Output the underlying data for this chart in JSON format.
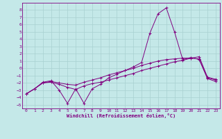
{
  "title": "",
  "xlabel": "Windchill (Refroidissement éolien,°C)",
  "background_color": "#c4e8e8",
  "line_color": "#800080",
  "grid_color": "#a8d0d0",
  "xlim": [
    -0.5,
    23.5
  ],
  "ylim": [
    -5.5,
    9.0
  ],
  "xticks": [
    0,
    1,
    2,
    3,
    4,
    5,
    6,
    7,
    8,
    9,
    10,
    11,
    12,
    13,
    14,
    15,
    16,
    17,
    18,
    19,
    20,
    21,
    22,
    23
  ],
  "yticks": [
    -5,
    -4,
    -3,
    -2,
    -1,
    0,
    1,
    2,
    3,
    4,
    5,
    6,
    7,
    8
  ],
  "line1_x": [
    0,
    1,
    2,
    3,
    4,
    5,
    6,
    7,
    8,
    9,
    10,
    11,
    12,
    13,
    14,
    15,
    16,
    17,
    18,
    19,
    20,
    21,
    22,
    23
  ],
  "line1_y": [
    -3.5,
    -2.8,
    -1.9,
    -1.7,
    -3.0,
    -4.8,
    -2.8,
    -4.8,
    -2.8,
    -2.2,
    -1.3,
    -0.8,
    -0.3,
    0.2,
    0.8,
    4.8,
    7.5,
    8.3,
    5.0,
    1.2,
    1.5,
    1.2,
    -1.4,
    -1.8
  ],
  "line2_x": [
    0,
    1,
    2,
    3,
    4,
    5,
    6,
    7,
    8,
    9,
    10,
    11,
    12,
    13,
    14,
    15,
    16,
    17,
    18,
    19,
    20,
    21,
    22,
    23
  ],
  "line2_y": [
    -3.5,
    -2.8,
    -2.0,
    -1.8,
    -2.0,
    -2.2,
    -2.3,
    -1.9,
    -1.6,
    -1.3,
    -0.9,
    -0.6,
    -0.3,
    0.0,
    0.4,
    0.7,
    1.0,
    1.2,
    1.3,
    1.4,
    1.4,
    1.3,
    -1.3,
    -1.6
  ],
  "line3_x": [
    0,
    1,
    2,
    3,
    4,
    5,
    6,
    7,
    8,
    9,
    10,
    11,
    12,
    13,
    14,
    15,
    16,
    17,
    18,
    19,
    20,
    21,
    22,
    23
  ],
  "line3_y": [
    -3.5,
    -2.8,
    -2.0,
    -1.9,
    -2.2,
    -2.6,
    -2.9,
    -2.4,
    -2.1,
    -1.9,
    -1.6,
    -1.3,
    -1.0,
    -0.7,
    -0.3,
    0.0,
    0.3,
    0.6,
    0.9,
    1.1,
    1.4,
    1.6,
    -1.2,
    -1.5
  ]
}
